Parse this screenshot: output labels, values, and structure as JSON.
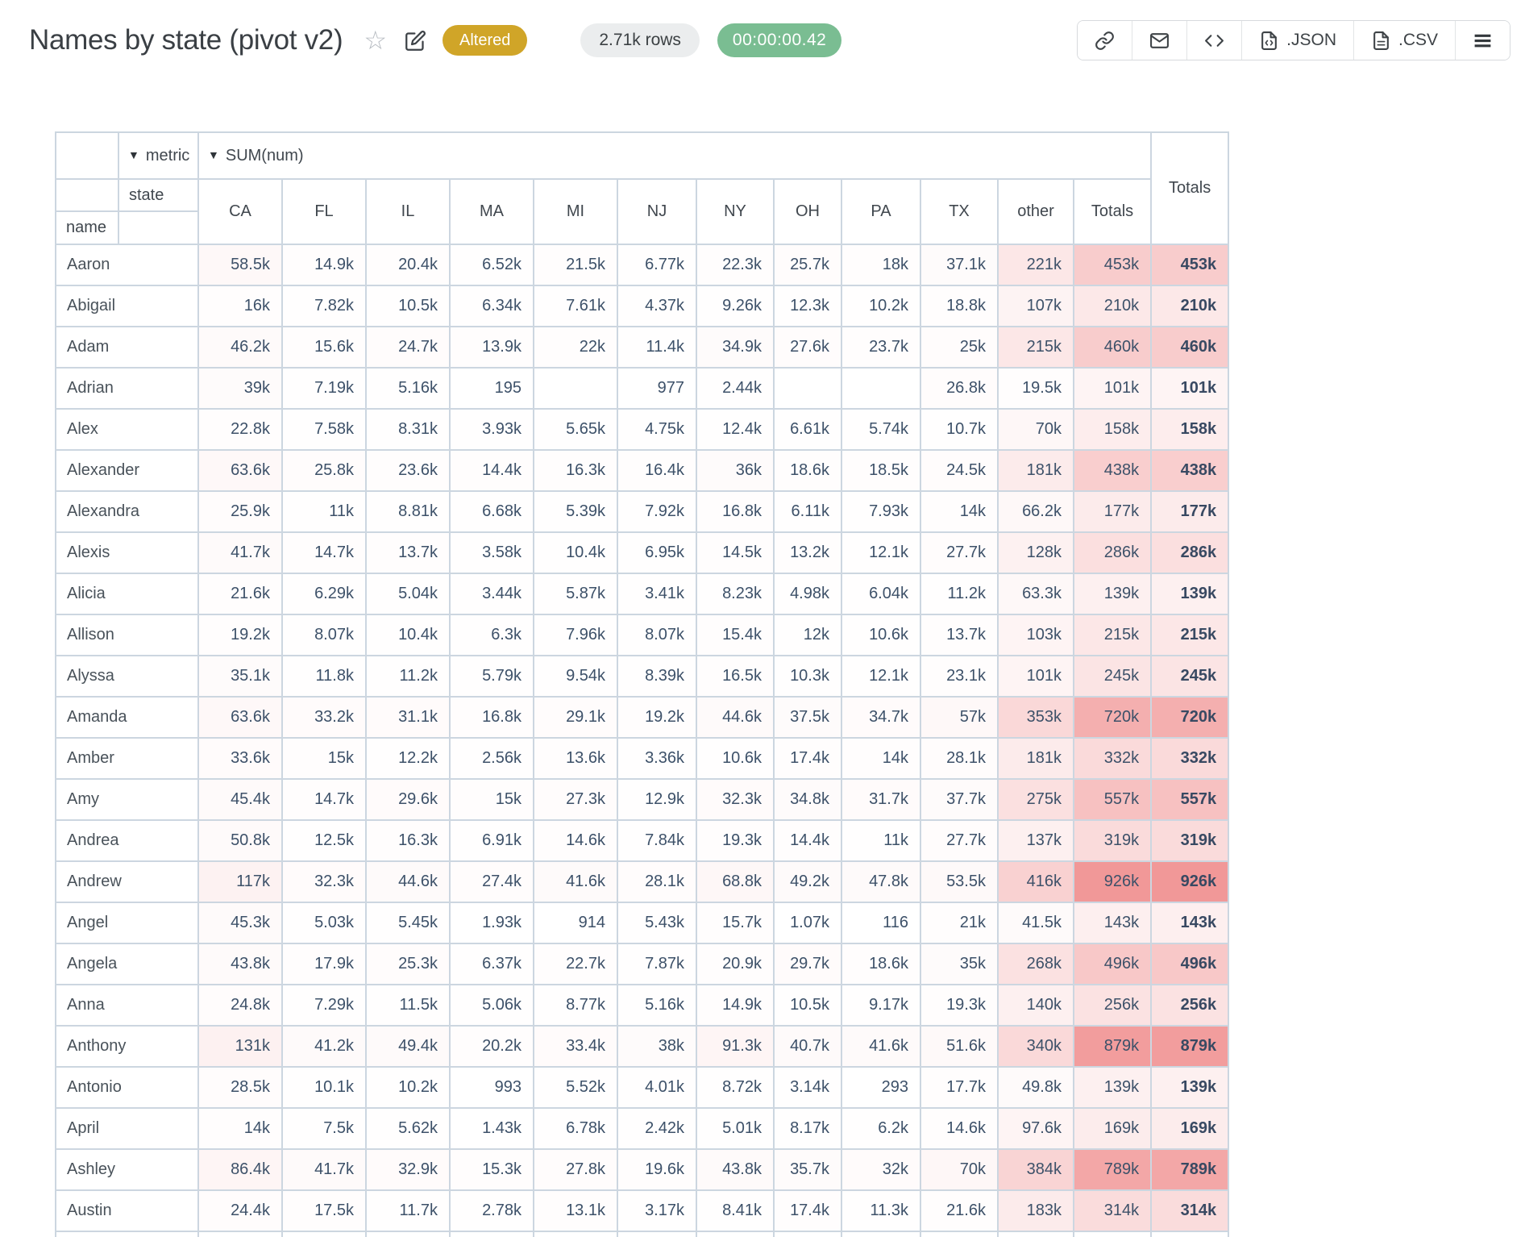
{
  "header": {
    "title": "Names by state (pivot v2)",
    "altered_badge": "Altered",
    "row_count": "2.71k rows",
    "timer": "00:00:00.42",
    "export_json_label": ".JSON",
    "export_csv_label": ".CSV"
  },
  "icons": {
    "collapse": "▼",
    "star": "☆"
  },
  "colors": {
    "altered_badge_bg": "#d0a528",
    "timer_pill_bg": "#7abd92",
    "rows_pill_bg": "#ebedee",
    "table_border": "#ccd6e0",
    "number_text": "#3d5169",
    "heat_base": "#eb6767"
  },
  "heatmap": {
    "max": 926000,
    "rgb": [
      235,
      103,
      103
    ],
    "max_alpha": 0.68
  },
  "table": {
    "metric_label": "metric",
    "sum_label": "SUM(num)",
    "state_label": "state",
    "name_label": "name",
    "totals_label": "Totals",
    "columns": [
      "CA",
      "FL",
      "IL",
      "MA",
      "MI",
      "NJ",
      "NY",
      "OH",
      "PA",
      "TX",
      "other",
      "Totals"
    ],
    "rows": [
      {
        "name": "Aaron",
        "values": [
          "58.5k",
          "14.9k",
          "20.4k",
          "6.52k",
          "21.5k",
          "6.77k",
          "22.3k",
          "25.7k",
          "18k",
          "37.1k",
          "221k",
          "453k"
        ],
        "total": "453k"
      },
      {
        "name": "Abigail",
        "values": [
          "16k",
          "7.82k",
          "10.5k",
          "6.34k",
          "7.61k",
          "4.37k",
          "9.26k",
          "12.3k",
          "10.2k",
          "18.8k",
          "107k",
          "210k"
        ],
        "total": "210k"
      },
      {
        "name": "Adam",
        "values": [
          "46.2k",
          "15.6k",
          "24.7k",
          "13.9k",
          "22k",
          "11.4k",
          "34.9k",
          "27.6k",
          "23.7k",
          "25k",
          "215k",
          "460k"
        ],
        "total": "460k"
      },
      {
        "name": "Adrian",
        "values": [
          "39k",
          "7.19k",
          "5.16k",
          "195",
          "",
          "977",
          "2.44k",
          "",
          "",
          "26.8k",
          "19.5k",
          "101k"
        ],
        "total": "101k"
      },
      {
        "name": "Alex",
        "values": [
          "22.8k",
          "7.58k",
          "8.31k",
          "3.93k",
          "5.65k",
          "4.75k",
          "12.4k",
          "6.61k",
          "5.74k",
          "10.7k",
          "70k",
          "158k"
        ],
        "total": "158k"
      },
      {
        "name": "Alexander",
        "values": [
          "63.6k",
          "25.8k",
          "23.6k",
          "14.4k",
          "16.3k",
          "16.4k",
          "36k",
          "18.6k",
          "18.5k",
          "24.5k",
          "181k",
          "438k"
        ],
        "total": "438k"
      },
      {
        "name": "Alexandra",
        "values": [
          "25.9k",
          "11k",
          "8.81k",
          "6.68k",
          "5.39k",
          "7.92k",
          "16.8k",
          "6.11k",
          "7.93k",
          "14k",
          "66.2k",
          "177k"
        ],
        "total": "177k"
      },
      {
        "name": "Alexis",
        "values": [
          "41.7k",
          "14.7k",
          "13.7k",
          "3.58k",
          "10.4k",
          "6.95k",
          "14.5k",
          "13.2k",
          "12.1k",
          "27.7k",
          "128k",
          "286k"
        ],
        "total": "286k"
      },
      {
        "name": "Alicia",
        "values": [
          "21.6k",
          "6.29k",
          "5.04k",
          "3.44k",
          "5.87k",
          "3.41k",
          "8.23k",
          "4.98k",
          "6.04k",
          "11.2k",
          "63.3k",
          "139k"
        ],
        "total": "139k"
      },
      {
        "name": "Allison",
        "values": [
          "19.2k",
          "8.07k",
          "10.4k",
          "6.3k",
          "7.96k",
          "8.07k",
          "15.4k",
          "12k",
          "10.6k",
          "13.7k",
          "103k",
          "215k"
        ],
        "total": "215k"
      },
      {
        "name": "Alyssa",
        "values": [
          "35.1k",
          "11.8k",
          "11.2k",
          "5.79k",
          "9.54k",
          "8.39k",
          "16.5k",
          "10.3k",
          "12.1k",
          "23.1k",
          "101k",
          "245k"
        ],
        "total": "245k"
      },
      {
        "name": "Amanda",
        "values": [
          "63.6k",
          "33.2k",
          "31.1k",
          "16.8k",
          "29.1k",
          "19.2k",
          "44.6k",
          "37.5k",
          "34.7k",
          "57k",
          "353k",
          "720k"
        ],
        "total": "720k"
      },
      {
        "name": "Amber",
        "values": [
          "33.6k",
          "15k",
          "12.2k",
          "2.56k",
          "13.6k",
          "3.36k",
          "10.6k",
          "17.4k",
          "14k",
          "28.1k",
          "181k",
          "332k"
        ],
        "total": "332k"
      },
      {
        "name": "Amy",
        "values": [
          "45.4k",
          "14.7k",
          "29.6k",
          "15k",
          "27.3k",
          "12.9k",
          "32.3k",
          "34.8k",
          "31.7k",
          "37.7k",
          "275k",
          "557k"
        ],
        "total": "557k"
      },
      {
        "name": "Andrea",
        "values": [
          "50.8k",
          "12.5k",
          "16.3k",
          "6.91k",
          "14.6k",
          "7.84k",
          "19.3k",
          "14.4k",
          "11k",
          "27.7k",
          "137k",
          "319k"
        ],
        "total": "319k"
      },
      {
        "name": "Andrew",
        "values": [
          "117k",
          "32.3k",
          "44.6k",
          "27.4k",
          "41.6k",
          "28.1k",
          "68.8k",
          "49.2k",
          "47.8k",
          "53.5k",
          "416k",
          "926k"
        ],
        "total": "926k"
      },
      {
        "name": "Angel",
        "values": [
          "45.3k",
          "5.03k",
          "5.45k",
          "1.93k",
          "914",
          "5.43k",
          "15.7k",
          "1.07k",
          "116",
          "21k",
          "41.5k",
          "143k"
        ],
        "total": "143k"
      },
      {
        "name": "Angela",
        "values": [
          "43.8k",
          "17.9k",
          "25.3k",
          "6.37k",
          "22.7k",
          "7.87k",
          "20.9k",
          "29.7k",
          "18.6k",
          "35k",
          "268k",
          "496k"
        ],
        "total": "496k"
      },
      {
        "name": "Anna",
        "values": [
          "24.8k",
          "7.29k",
          "11.5k",
          "5.06k",
          "8.77k",
          "5.16k",
          "14.9k",
          "10.5k",
          "9.17k",
          "19.3k",
          "140k",
          "256k"
        ],
        "total": "256k"
      },
      {
        "name": "Anthony",
        "values": [
          "131k",
          "41.2k",
          "49.4k",
          "20.2k",
          "33.4k",
          "38k",
          "91.3k",
          "40.7k",
          "41.6k",
          "51.6k",
          "340k",
          "879k"
        ],
        "total": "879k"
      },
      {
        "name": "Antonio",
        "values": [
          "28.5k",
          "10.1k",
          "10.2k",
          "993",
          "5.52k",
          "4.01k",
          "8.72k",
          "3.14k",
          "293",
          "17.7k",
          "49.8k",
          "139k"
        ],
        "total": "139k"
      },
      {
        "name": "April",
        "values": [
          "14k",
          "7.5k",
          "5.62k",
          "1.43k",
          "6.78k",
          "2.42k",
          "5.01k",
          "8.17k",
          "6.2k",
          "14.6k",
          "97.6k",
          "169k"
        ],
        "total": "169k"
      },
      {
        "name": "Ashley",
        "values": [
          "86.4k",
          "41.7k",
          "32.9k",
          "15.3k",
          "27.8k",
          "19.6k",
          "43.8k",
          "35.7k",
          "32k",
          "70k",
          "384k",
          "789k"
        ],
        "total": "789k"
      },
      {
        "name": "Austin",
        "values": [
          "24.4k",
          "17.5k",
          "11.7k",
          "2.78k",
          "13.1k",
          "3.17k",
          "8.41k",
          "17.4k",
          "11.3k",
          "21.6k",
          "183k",
          "314k"
        ],
        "total": "314k"
      }
    ]
  }
}
